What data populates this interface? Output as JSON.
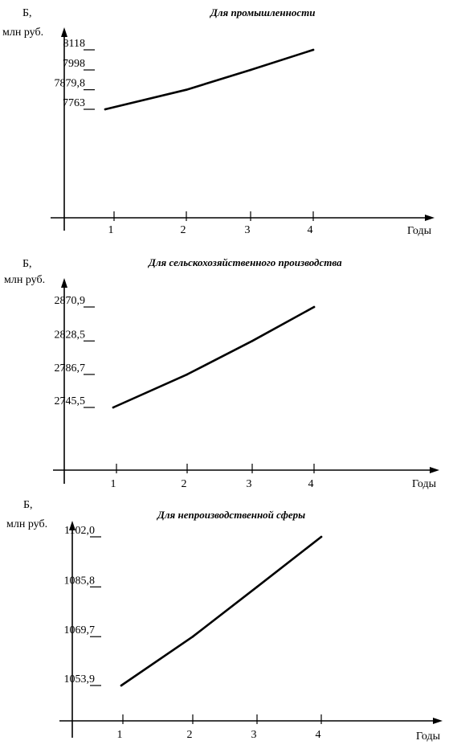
{
  "chart_data": [
    {
      "type": "line",
      "title": "Для промышленности",
      "ylabel_line1": "Б,",
      "ylabel_line2": "млн руб.",
      "xlabel": "Годы",
      "categories": [
        "1",
        "2",
        "3",
        "4"
      ],
      "y_tick_labels": [
        "8118",
        "7998",
        "7879,8",
        "7763"
      ],
      "values": [
        7763,
        7879.8,
        7998,
        8118
      ]
    },
    {
      "type": "line",
      "title": "Для сельскохозяйственного производства",
      "ylabel_line1": "Б,",
      "ylabel_line2": "млн руб.",
      "xlabel": "Годы",
      "categories": [
        "1",
        "2",
        "3",
        "4"
      ],
      "y_tick_labels": [
        "2870,9",
        "2828,5",
        "2786,7",
        "2745,5"
      ],
      "values": [
        2745.5,
        2786.7,
        2828.5,
        2870.9
      ]
    },
    {
      "type": "line",
      "title": "Для непроизводственной сферы",
      "ylabel_line1": "Б,",
      "ylabel_line2": "млн руб.",
      "xlabel": "Годы",
      "categories": [
        "1",
        "2",
        "3",
        "4"
      ],
      "y_tick_labels": [
        "1102,0",
        "1085,8",
        "1069,7",
        "1053,9"
      ],
      "values": [
        1053.9,
        1069.7,
        1085.8,
        1102.0
      ]
    }
  ]
}
